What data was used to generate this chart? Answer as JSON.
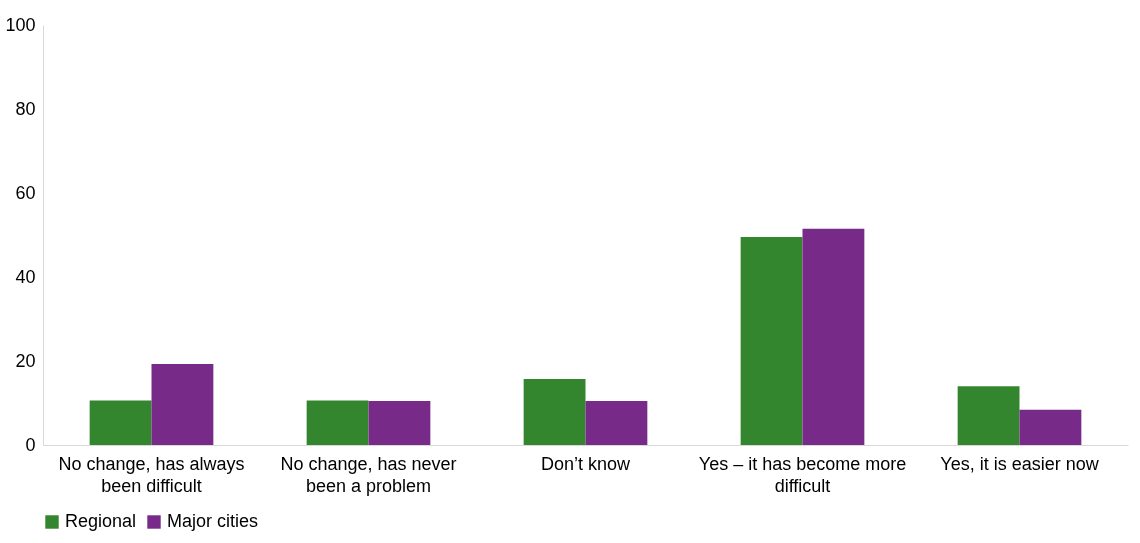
{
  "chart_data": {
    "type": "bar",
    "categories": [
      "No change, has always been difficult",
      "No change, has never been a problem",
      "Don’t know",
      "Yes – it has become more difficult",
      "Yes, it is easier now"
    ],
    "series": [
      {
        "name": "Regional",
        "color": "#33862d",
        "values": [
          10.6,
          10.6,
          15.7,
          49.5,
          14.0
        ]
      },
      {
        "name": "Major cities",
        "color": "#782a88",
        "values": [
          19.3,
          10.5,
          10.5,
          51.5,
          8.4
        ]
      }
    ],
    "ylim": [
      0,
      100
    ],
    "yticks": [
      0,
      20,
      40,
      60,
      80,
      100
    ],
    "grid": false,
    "legend": "bottom"
  }
}
